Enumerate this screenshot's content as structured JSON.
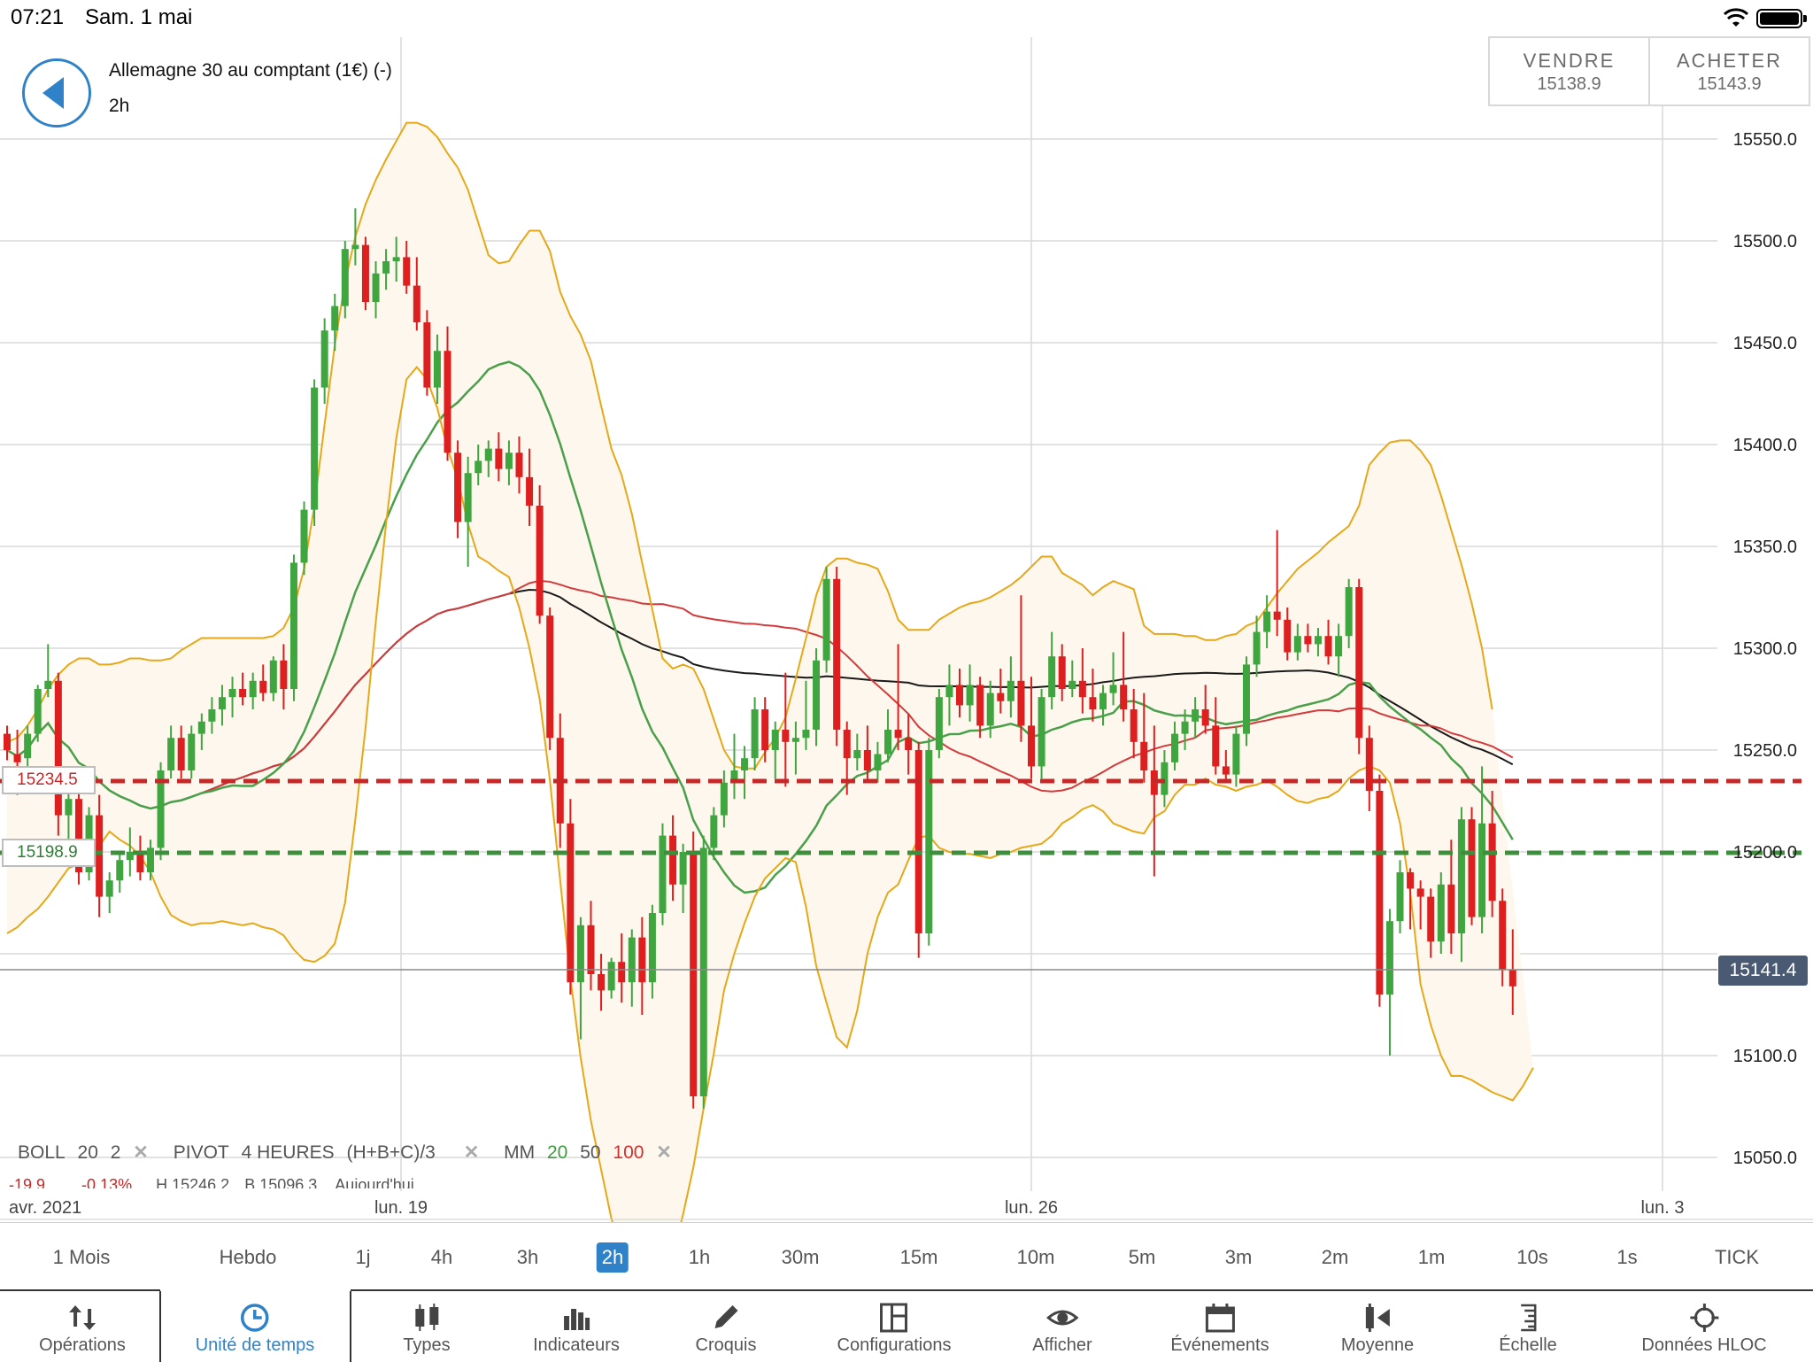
{
  "status_bar": {
    "time": "07:21",
    "date": "Sam. 1 mai",
    "wifi_icon": "wifi-icon",
    "battery_icon": "battery-full-icon"
  },
  "header": {
    "back_icon": "back-arrow-icon",
    "instrument": "Allemagne 30 au comptant (1€) (-)",
    "timeframe": "2h"
  },
  "quote": {
    "sell_label": "VENDRE",
    "sell_price": "15138.9",
    "buy_label": "ACHETER",
    "buy_price": "15143.9"
  },
  "levels": {
    "red_label": "15234.5",
    "green_label": "15198.9",
    "last_price": "15141.4"
  },
  "indicators": {
    "boll": {
      "name": "BOLL",
      "p1": "20",
      "p2": "2"
    },
    "pivot": {
      "name": "PIVOT",
      "p1": "4 HEURES",
      "p2": "(H+B+C)/3"
    },
    "mm": {
      "name": "MM",
      "p1": "20",
      "p2": "50",
      "p3": "100"
    },
    "remove_icon": "close-icon"
  },
  "stats": {
    "change": "-19.9",
    "change_pct": "-0.13%",
    "high": "H 15246.2",
    "low": "B 15096.3",
    "period": "Aujourd'hui"
  },
  "chart_data": {
    "type": "candlestick",
    "instrument": "Allemagne 30 au comptant (1€) (-)",
    "interval": "2h",
    "y_ticks": [
      15550.0,
      15500.0,
      15450.0,
      15400.0,
      15350.0,
      15300.0,
      15250.0,
      15200.0,
      15150.0,
      15100.0,
      15050.0
    ],
    "y_tick_labels": [
      "15550.0",
      "15500.0",
      "15450.0",
      "15400.0",
      "15350.0",
      "15300.0",
      "15250.0",
      "15200.0",
      "15150.0",
      "15100.0",
      "15050.0"
    ],
    "ylim": [
      15035,
      15600
    ],
    "x_labels": [
      "avr. 2021",
      "lun. 19",
      "lun. 26",
      "lun. 3"
    ],
    "colors": {
      "up": "#3fa63f",
      "down": "#dd1f1f",
      "bollinger": "#e6a817",
      "band_fill": "#fdf7ee",
      "ma20": "#4aa04a",
      "ma50": "#d23b3b",
      "ma100": "#1a1a1a",
      "grid": "#d9d9d9"
    },
    "horizontal_levels": {
      "red_dashed": 15234.5,
      "green_dashed": 15198.9,
      "last": 15141.4
    },
    "candles": [
      [
        15258,
        15262,
        15245,
        15250
      ],
      [
        15248,
        15260,
        15228,
        15244
      ],
      [
        15246,
        15262,
        15240,
        15258
      ],
      [
        15258,
        15282,
        15254,
        15280
      ],
      [
        15280,
        15302,
        15276,
        15284
      ],
      [
        15284,
        15288,
        15208,
        15218
      ],
      [
        15218,
        15232,
        15205,
        15226
      ],
      [
        15226,
        15234,
        15184,
        15190
      ],
      [
        15190,
        15222,
        15186,
        15218
      ],
      [
        15218,
        15228,
        15168,
        15178
      ],
      [
        15178,
        15190,
        15170,
        15186
      ],
      [
        15186,
        15200,
        15180,
        15196
      ],
      [
        15196,
        15212,
        15188,
        15200
      ],
      [
        15200,
        15208,
        15186,
        15190
      ],
      [
        15190,
        15206,
        15186,
        15202
      ],
      [
        15202,
        15244,
        15196,
        15240
      ],
      [
        15240,
        15262,
        15236,
        15256
      ],
      [
        15256,
        15262,
        15236,
        15240
      ],
      [
        15240,
        15262,
        15236,
        15258
      ],
      [
        15258,
        15268,
        15250,
        15264
      ],
      [
        15264,
        15276,
        15258,
        15270
      ],
      [
        15270,
        15282,
        15262,
        15276
      ],
      [
        15276,
        15286,
        15266,
        15280
      ],
      [
        15280,
        15288,
        15272,
        15276
      ],
      [
        15276,
        15288,
        15270,
        15284
      ],
      [
        15284,
        15292,
        15274,
        15278
      ],
      [
        15278,
        15296,
        15274,
        15294
      ],
      [
        15294,
        15302,
        15270,
        15280
      ],
      [
        15280,
        15346,
        15274,
        15342
      ],
      [
        15342,
        15372,
        15336,
        15368
      ],
      [
        15368,
        15432,
        15360,
        15428
      ],
      [
        15428,
        15462,
        15420,
        15456
      ],
      [
        15456,
        15474,
        15446,
        15468
      ],
      [
        15468,
        15500,
        15462,
        15496
      ],
      [
        15496,
        15516,
        15488,
        15498
      ],
      [
        15498,
        15502,
        15466,
        15470
      ],
      [
        15470,
        15490,
        15462,
        15484
      ],
      [
        15484,
        15496,
        15476,
        15490
      ],
      [
        15490,
        15502,
        15480,
        15492
      ],
      [
        15492,
        15500,
        15474,
        15478
      ],
      [
        15478,
        15492,
        15456,
        15460
      ],
      [
        15460,
        15466,
        15424,
        15428
      ],
      [
        15428,
        15454,
        15420,
        15446
      ],
      [
        15446,
        15458,
        15392,
        15396
      ],
      [
        15396,
        15402,
        15354,
        15362
      ],
      [
        15362,
        15394,
        15340,
        15386
      ],
      [
        15386,
        15400,
        15380,
        15392
      ],
      [
        15392,
        15402,
        15384,
        15398
      ],
      [
        15398,
        15406,
        15382,
        15388
      ],
      [
        15388,
        15402,
        15380,
        15396
      ],
      [
        15396,
        15404,
        15376,
        15384
      ],
      [
        15384,
        15398,
        15360,
        15370
      ],
      [
        15370,
        15380,
        15312,
        15316
      ],
      [
        15316,
        15320,
        15250,
        15256
      ],
      [
        15256,
        15268,
        15202,
        15214
      ],
      [
        15214,
        15226,
        15130,
        15136
      ],
      [
        15136,
        15168,
        15108,
        15164
      ],
      [
        15164,
        15176,
        15132,
        15140
      ],
      [
        15140,
        15150,
        15122,
        15132
      ],
      [
        15132,
        15148,
        15128,
        15146
      ],
      [
        15146,
        15160,
        15126,
        15136
      ],
      [
        15136,
        15162,
        15124,
        15158
      ],
      [
        15158,
        15168,
        15120,
        15136
      ],
      [
        15136,
        15174,
        15128,
        15170
      ],
      [
        15170,
        15214,
        15164,
        15208
      ],
      [
        15208,
        15218,
        15176,
        15184
      ],
      [
        15184,
        15204,
        15170,
        15200
      ],
      [
        15200,
        15210,
        15074,
        15080
      ],
      [
        15080,
        15208,
        15074,
        15202
      ],
      [
        15202,
        15222,
        15196,
        15218
      ],
      [
        15218,
        15240,
        15212,
        15234
      ],
      [
        15234,
        15258,
        15226,
        15240
      ],
      [
        15240,
        15252,
        15226,
        15246
      ],
      [
        15246,
        15276,
        15240,
        15270
      ],
      [
        15270,
        15276,
        15244,
        15250
      ],
      [
        15250,
        15264,
        15236,
        15260
      ],
      [
        15260,
        15288,
        15232,
        15254
      ],
      [
        15254,
        15264,
        15238,
        15256
      ],
      [
        15256,
        15284,
        15250,
        15260
      ],
      [
        15260,
        15300,
        15252,
        15294
      ],
      [
        15294,
        15340,
        15288,
        15334
      ],
      [
        15334,
        15340,
        15252,
        15260
      ],
      [
        15260,
        15264,
        15228,
        15246
      ],
      [
        15246,
        15258,
        15240,
        15250
      ],
      [
        15250,
        15262,
        15234,
        15240
      ],
      [
        15240,
        15254,
        15234,
        15248
      ],
      [
        15248,
        15270,
        15244,
        15260
      ],
      [
        15260,
        15302,
        15250,
        15256
      ],
      [
        15256,
        15268,
        15238,
        15250
      ],
      [
        15250,
        15254,
        15148,
        15160
      ],
      [
        15160,
        15256,
        15154,
        15250
      ],
      [
        15250,
        15280,
        15246,
        15276
      ],
      [
        15276,
        15292,
        15262,
        15282
      ],
      [
        15282,
        15290,
        15266,
        15272
      ],
      [
        15272,
        15292,
        15264,
        15282
      ],
      [
        15282,
        15286,
        15256,
        15262
      ],
      [
        15262,
        15284,
        15256,
        15278
      ],
      [
        15278,
        15290,
        15268,
        15274
      ],
      [
        15274,
        15296,
        15266,
        15284
      ],
      [
        15284,
        15326,
        15254,
        15262
      ],
      [
        15262,
        15286,
        15236,
        15242
      ],
      [
        15242,
        15280,
        15236,
        15276
      ],
      [
        15276,
        15308,
        15270,
        15296
      ],
      [
        15296,
        15302,
        15274,
        15280
      ],
      [
        15280,
        15294,
        15276,
        15284
      ],
      [
        15284,
        15300,
        15268,
        15276
      ],
      [
        15276,
        15290,
        15264,
        15270
      ],
      [
        15270,
        15282,
        15262,
        15278
      ],
      [
        15278,
        15298,
        15272,
        15282
      ],
      [
        15282,
        15308,
        15264,
        15270
      ],
      [
        15270,
        15280,
        15246,
        15254
      ],
      [
        15254,
        15278,
        15234,
        15240
      ],
      [
        15240,
        15262,
        15188,
        15228
      ],
      [
        15228,
        15250,
        15222,
        15244
      ],
      [
        15244,
        15264,
        15240,
        15258
      ],
      [
        15258,
        15270,
        15250,
        15264
      ],
      [
        15264,
        15276,
        15256,
        15270
      ],
      [
        15270,
        15282,
        15258,
        15262
      ],
      [
        15262,
        15276,
        15238,
        15242
      ],
      [
        15242,
        15250,
        15234,
        15238
      ],
      [
        15238,
        15262,
        15232,
        15258
      ],
      [
        15258,
        15296,
        15252,
        15292
      ],
      [
        15292,
        15316,
        15286,
        15308
      ],
      [
        15308,
        15326,
        15300,
        15318
      ],
      [
        15318,
        15358,
        15306,
        15314
      ],
      [
        15314,
        15320,
        15294,
        15298
      ],
      [
        15298,
        15312,
        15294,
        15306
      ],
      [
        15306,
        15312,
        15298,
        15302
      ],
      [
        15302,
        15310,
        15296,
        15306
      ],
      [
        15306,
        15314,
        15292,
        15296
      ],
      [
        15296,
        15312,
        15286,
        15306
      ],
      [
        15306,
        15334,
        15300,
        15330
      ],
      [
        15330,
        15334,
        15248,
        15256
      ],
      [
        15256,
        15262,
        15220,
        15230
      ],
      [
        15230,
        15238,
        15124,
        15130
      ],
      [
        15130,
        15172,
        15100,
        15166
      ],
      [
        15166,
        15196,
        15160,
        15190
      ],
      [
        15190,
        15192,
        15162,
        15182
      ],
      [
        15182,
        15186,
        15162,
        15178
      ],
      [
        15178,
        15182,
        15148,
        15156
      ],
      [
        15156,
        15190,
        15150,
        15184
      ],
      [
        15184,
        15206,
        15150,
        15160
      ],
      [
        15160,
        15222,
        15146,
        15216
      ],
      [
        15216,
        15222,
        15164,
        15168
      ],
      [
        15168,
        15242,
        15160,
        15214
      ],
      [
        15214,
        15230,
        15168,
        15176
      ],
      [
        15176,
        15182,
        15134,
        15142
      ],
      [
        15142,
        15162,
        15120,
        15134
      ]
    ],
    "bollinger_upper": [
      15254,
      15256,
      15262,
      15270,
      15280,
      15287,
      15292,
      15295,
      15295,
      15292,
      15292,
      15293,
      15295,
      15295,
      15294,
      15294,
      15295,
      15299,
      15302,
      15305,
      15305,
      15305,
      15305,
      15305,
      15305,
      15305,
      15306,
      15310,
      15320,
      15339,
      15370,
      15410,
      15449,
      15480,
      15502,
      15518,
      15530,
      15540,
      15549,
      15558,
      15558,
      15556,
      15551,
      15543,
      15536,
      15525,
      15509,
      15493,
      15489,
      15490,
      15498,
      15505,
      15505,
      15495,
      15475,
      15463,
      15454,
      15441,
      15419,
      15398,
      15385,
      15366,
      15342,
      15319,
      15295,
      15290,
      15292,
      15290,
      15280,
      15265,
      15250,
      15242,
      15241,
      15241,
      15249,
      15256,
      15266,
      15285,
      15305,
      15326,
      15340,
      15344,
      15344,
      15342,
      15341,
      15339,
      15328,
      15314,
      15309,
      15309,
      15309,
      15314,
      15317,
      15320,
      15322,
      15323,
      15325,
      15328,
      15331,
      15335,
      15340,
      15345,
      15345,
      15337,
      15334,
      15331,
      15326,
      15330,
      15333,
      15331,
      15329,
      15311,
      15307,
      15307,
      15307,
      15306,
      15306,
      15304,
      15304,
      15306,
      15307,
      15311,
      15313,
      15320,
      15327,
      15333,
      15339,
      15343,
      15347,
      15352,
      15356,
      15360,
      15370,
      15390,
      15396,
      15401,
      15402,
      15402,
      15397,
      15390,
      15375,
      15358,
      15341,
      15322,
      15300,
      15270
    ],
    "bollinger_lower": [
      15160,
      15163,
      15168,
      15172,
      15178,
      15185,
      15192,
      15194,
      15200,
      15203,
      15210,
      15206,
      15203,
      15198,
      15190,
      15178,
      15169,
      15166,
      15164,
      15165,
      15165,
      15166,
      15165,
      15164,
      15165,
      15163,
      15162,
      15159,
      15152,
      15147,
      15146,
      15149,
      15155,
      15175,
      15216,
      15261,
      15313,
      15361,
      15403,
      15432,
      15438,
      15432,
      15418,
      15398,
      15383,
      15361,
      15345,
      15342,
      15338,
      15335,
      15320,
      15300,
      15275,
      15235,
      15186,
      15138,
      15099,
      15068,
      15044,
      15020,
      15003,
      14980,
      14964,
      14957,
      14975,
      15002,
      15022,
      15045,
      15074,
      15101,
      15132,
      15150,
      15165,
      15178,
      15187,
      15192,
      15197,
      15195,
      15173,
      15144,
      15126,
      15109,
      15104,
      15122,
      15150,
      15168,
      15180,
      15184,
      15196,
      15207,
      15208,
      15202,
      15200,
      15199,
      15199,
      15198,
      15197,
      15199,
      15200,
      15202,
      15203,
      15204,
      15208,
      15214,
      15217,
      15221,
      15223,
      15220,
      15214,
      15212,
      15210,
      15209,
      15217,
      15220,
      15228,
      15233,
      15233,
      15236,
      15233,
      15232,
      15230,
      15232,
      15233,
      15235,
      15232,
      15228,
      15225,
      15224,
      15226,
      15227,
      15230,
      15236,
      15240,
      15242,
      15240,
      15234,
      15214,
      15180,
      15135,
      15115,
      15100,
      15090,
      15090,
      15088,
      15085,
      15082,
      15080,
      15078,
      15085,
      15094
    ]
  },
  "x_axis": {
    "month": "avr. 2021",
    "tick1": "lun. 19",
    "tick2": "lun. 26",
    "tick3": "lun. 3"
  },
  "timeframes": [
    "1 Mois",
    "Hebdo",
    "1j",
    "4h",
    "3h",
    "2h",
    "1h",
    "30m",
    "15m",
    "10m",
    "5m",
    "3m",
    "2m",
    "1m",
    "10s",
    "1s",
    "TICK"
  ],
  "active_timeframe": "2h",
  "toolbar": [
    {
      "label": "Opérations",
      "icon": "up-down-arrows-icon"
    },
    {
      "label": "Unité de temps",
      "icon": "clock-icon"
    },
    {
      "label": "Types",
      "icon": "candlestick-icon"
    },
    {
      "label": "Indicateurs",
      "icon": "bar-chart-icon"
    },
    {
      "label": "Croquis",
      "icon": "pencil-icon"
    },
    {
      "label": "Configurations",
      "icon": "layout-icon"
    },
    {
      "label": "Afficher",
      "icon": "eye-icon"
    },
    {
      "label": "Événements",
      "icon": "calendar-icon"
    },
    {
      "label": "Moyenne",
      "icon": "average-icon"
    },
    {
      "label": "Échelle",
      "icon": "scale-icon"
    },
    {
      "label": "Données HLOC",
      "icon": "crosshair-icon"
    }
  ]
}
